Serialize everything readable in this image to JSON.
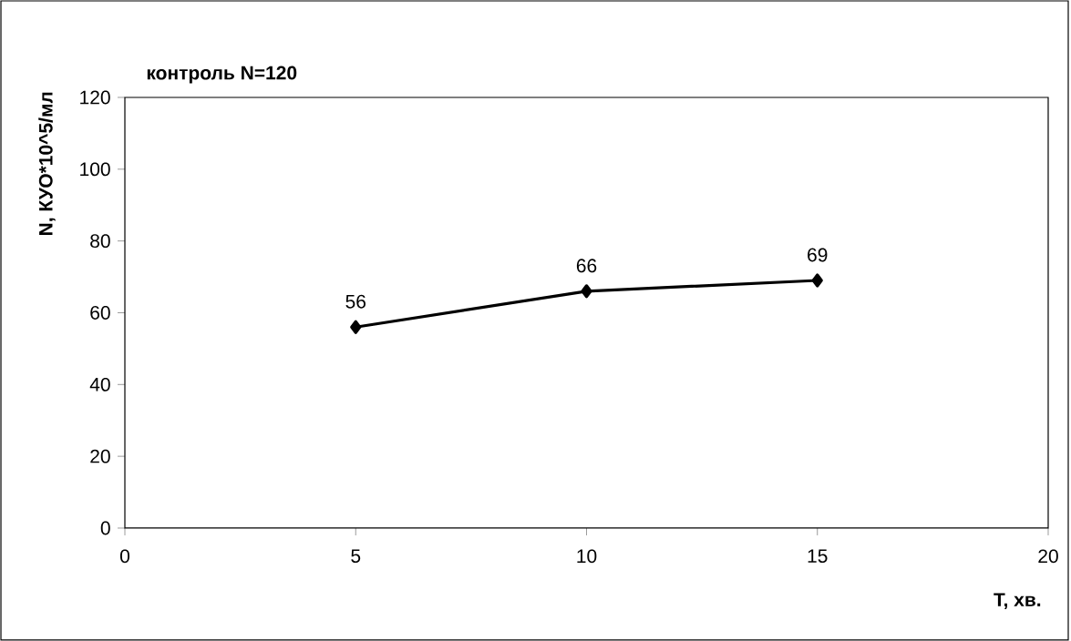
{
  "chart_data": {
    "type": "line",
    "title": "контроль N=120",
    "xlabel": "T, хв.",
    "ylabel": "N, КУО*10^5/мл",
    "x": [
      5,
      10,
      15
    ],
    "series": [
      {
        "color": "#000000",
        "values": [
          56,
          66,
          69
        ]
      }
    ],
    "xlim": [
      0,
      20
    ],
    "xticks": [
      0,
      5,
      10,
      15,
      20
    ],
    "ylim": [
      0,
      120
    ],
    "yticks": [
      0,
      20,
      40,
      60,
      80,
      100,
      120
    ],
    "marker": "diamond",
    "line_style": "solid",
    "data_labels": true,
    "grid": false
  }
}
